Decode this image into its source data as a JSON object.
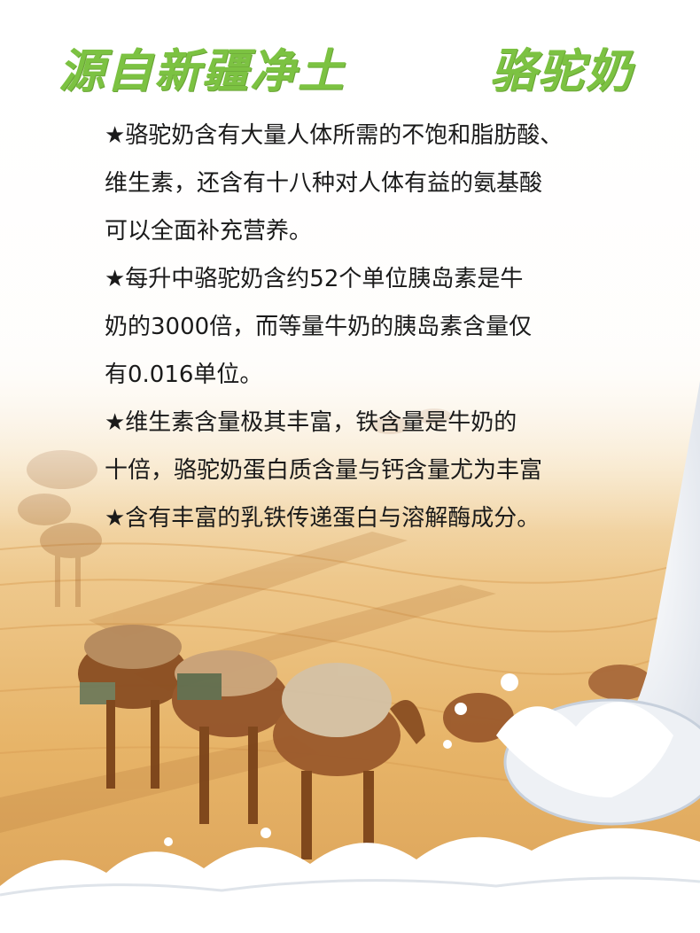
{
  "headline": {
    "left": "源自新疆净土",
    "right": "骆驼奶"
  },
  "lines": [
    "★骆驼奶含有大量人体所需的不饱和脂肪酸、",
    "维生素，还含有十八种对人体有益的氨基酸",
    "可以全面补充营养。",
    "★每升中骆驼奶含约52个单位胰岛素是牛",
    "奶的3000倍，而等量牛奶的胰岛素含量仅",
    "有0.016单位。",
    "★维生素含量极其丰富，铁含量是牛奶的",
    "十倍，骆驼奶蛋白质含量与钙含量尤为丰富",
    "★含有丰富的乳铁传递蛋白与溶解酶成分。"
  ],
  "colors": {
    "headline": "#7cc242",
    "text": "#1a1a1a",
    "sand": "#e8b567",
    "milk": "#ffffff"
  }
}
